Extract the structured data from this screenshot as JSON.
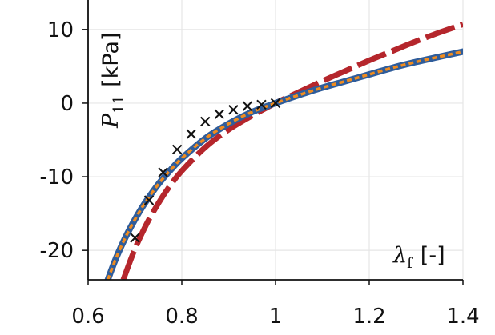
{
  "chart_data": {
    "type": "line",
    "title": "",
    "xlabel": "λ_f [-]",
    "ylabel": "P_11 [kPa]",
    "xlabel_parts": {
      "symbol": "λ",
      "sub": "f",
      "unit": "[-]"
    },
    "ylabel_parts": {
      "symbol": "P",
      "sub": "11",
      "unit": "[kPa]"
    },
    "xlim": [
      0.6,
      1.4
    ],
    "ylim": [
      -24,
      14
    ],
    "grid": true,
    "legend": "none",
    "xticks": [
      {
        "value": 0.6,
        "label": "0.6"
      },
      {
        "value": 0.8,
        "label": "0.8"
      },
      {
        "value": 1.0,
        "label": "1"
      },
      {
        "value": 1.2,
        "label": "1.2"
      },
      {
        "value": 1.4,
        "label": "1.4"
      }
    ],
    "yticks": [
      {
        "value": 10,
        "label": "10"
      },
      {
        "value": 0,
        "label": "0"
      },
      {
        "value": -10,
        "label": "-10"
      },
      {
        "value": -20,
        "label": "-20"
      }
    ],
    "series": [
      {
        "kind": "line",
        "style": "dashed",
        "color": "#b5262c",
        "x": [
          0.675,
          0.7,
          0.725,
          0.75,
          0.775,
          0.8,
          0.85,
          0.9,
          0.95,
          1.0,
          1.05,
          1.1,
          1.15,
          1.2,
          1.25,
          1.3,
          1.35,
          1.4
        ],
        "y": [
          -24.0,
          -19.8,
          -16.4,
          -13.6,
          -11.2,
          -9.2,
          -6.0,
          -3.6,
          -1.7,
          0.0,
          1.5,
          3.0,
          4.4,
          5.8,
          7.1,
          8.4,
          9.6,
          10.7
        ]
      },
      {
        "kind": "line",
        "style": "solid",
        "color": "#2f5d9b",
        "x": [
          0.642,
          0.66,
          0.68,
          0.7,
          0.72,
          0.75,
          0.78,
          0.8,
          0.85,
          0.9,
          0.95,
          1.0,
          1.05,
          1.1,
          1.15,
          1.2,
          1.25,
          1.3,
          1.35,
          1.4
        ],
        "y": [
          -24.0,
          -21.0,
          -18.2,
          -15.8,
          -13.7,
          -11.0,
          -8.8,
          -7.5,
          -4.8,
          -2.8,
          -1.2,
          0.0,
          1.1,
          2.1,
          3.0,
          3.9,
          4.8,
          5.6,
          6.3,
          7.0
        ]
      },
      {
        "kind": "line",
        "style": "dotted",
        "color": "#f08c1f",
        "x": [
          0.642,
          0.66,
          0.68,
          0.7,
          0.72,
          0.75,
          0.78,
          0.8,
          0.85,
          0.9,
          0.95,
          1.0,
          1.05,
          1.1,
          1.15,
          1.2,
          1.25,
          1.3,
          1.35,
          1.4
        ],
        "y": [
          -24.0,
          -21.0,
          -18.2,
          -15.8,
          -13.7,
          -11.0,
          -8.8,
          -7.5,
          -4.8,
          -2.8,
          -1.2,
          0.0,
          1.1,
          2.1,
          3.0,
          3.9,
          4.8,
          5.6,
          6.3,
          7.0
        ]
      },
      {
        "kind": "marker",
        "marker": "x",
        "color": "#111111",
        "x": [
          0.7,
          0.73,
          0.76,
          0.79,
          0.82,
          0.85,
          0.88,
          0.91,
          0.94,
          0.97,
          1.0
        ],
        "y": [
          -18.3,
          -13.2,
          -9.4,
          -6.3,
          -4.2,
          -2.5,
          -1.5,
          -0.9,
          -0.4,
          -0.2,
          0.0
        ]
      }
    ]
  }
}
